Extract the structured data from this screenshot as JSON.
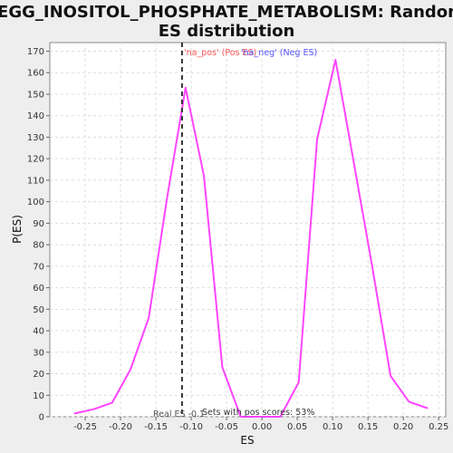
{
  "colors": {
    "curve": "#ff44ff",
    "real_es_line": "#333333",
    "na_pos_text": "#ff5555",
    "na_neg_text": "#5555ff",
    "grid": "#dddddd",
    "plot_bg": "#ffffff"
  },
  "chart_data": {
    "type": "line",
    "title_line1": "KEGG_INOSITOL_PHOSPHATE_METABOLISM: Random",
    "title_line2": "ES distribution",
    "xlabel": "ES",
    "ylabel": "P(ES)",
    "xlim": [
      -0.3,
      0.26
    ],
    "ylim": [
      0,
      174
    ],
    "grid": true,
    "x_ticks": [
      -0.25,
      -0.2,
      -0.15,
      -0.1,
      -0.05,
      0.0,
      0.05,
      0.1,
      0.15,
      0.2,
      0.25
    ],
    "x_tick_labels": [
      "-0.25",
      "-0.20",
      "-0.15",
      "-0.10",
      "-0.05",
      "0.00",
      "0.05",
      "0.10",
      "0.15",
      "0.20",
      "0.25"
    ],
    "y_ticks": [
      0,
      10,
      20,
      30,
      40,
      50,
      60,
      70,
      80,
      90,
      100,
      110,
      120,
      130,
      140,
      150,
      160,
      170
    ],
    "y_tick_labels": [
      "0",
      "10",
      "20",
      "30",
      "40",
      "50",
      "60",
      "70",
      "80",
      "90",
      "100",
      "110",
      "120",
      "130",
      "140",
      "150",
      "160",
      "170"
    ],
    "series": [
      {
        "x": [
          -0.265,
          -0.238,
          -0.212,
          -0.186,
          -0.16,
          -0.134,
          -0.108,
          -0.082,
          -0.056,
          -0.03,
          0.0,
          0.026,
          0.052,
          0.078,
          0.104,
          0.13,
          0.156,
          0.182,
          0.208,
          0.234
        ],
        "y": [
          1.5,
          3.5,
          6.5,
          22,
          46,
          102,
          153,
          112,
          23,
          0,
          0,
          0,
          16,
          129,
          166,
          118,
          70,
          19,
          7,
          4
        ]
      }
    ],
    "real_es": {
      "x": -0.113,
      "label": "Real ES -0.1"
    },
    "annotations": {
      "na_pos": "'na_pos' (Pos ES)",
      "na_neg": "'na_neg' (Neg ES)",
      "pos_scores": "Sets with pos scores: 53%"
    }
  }
}
